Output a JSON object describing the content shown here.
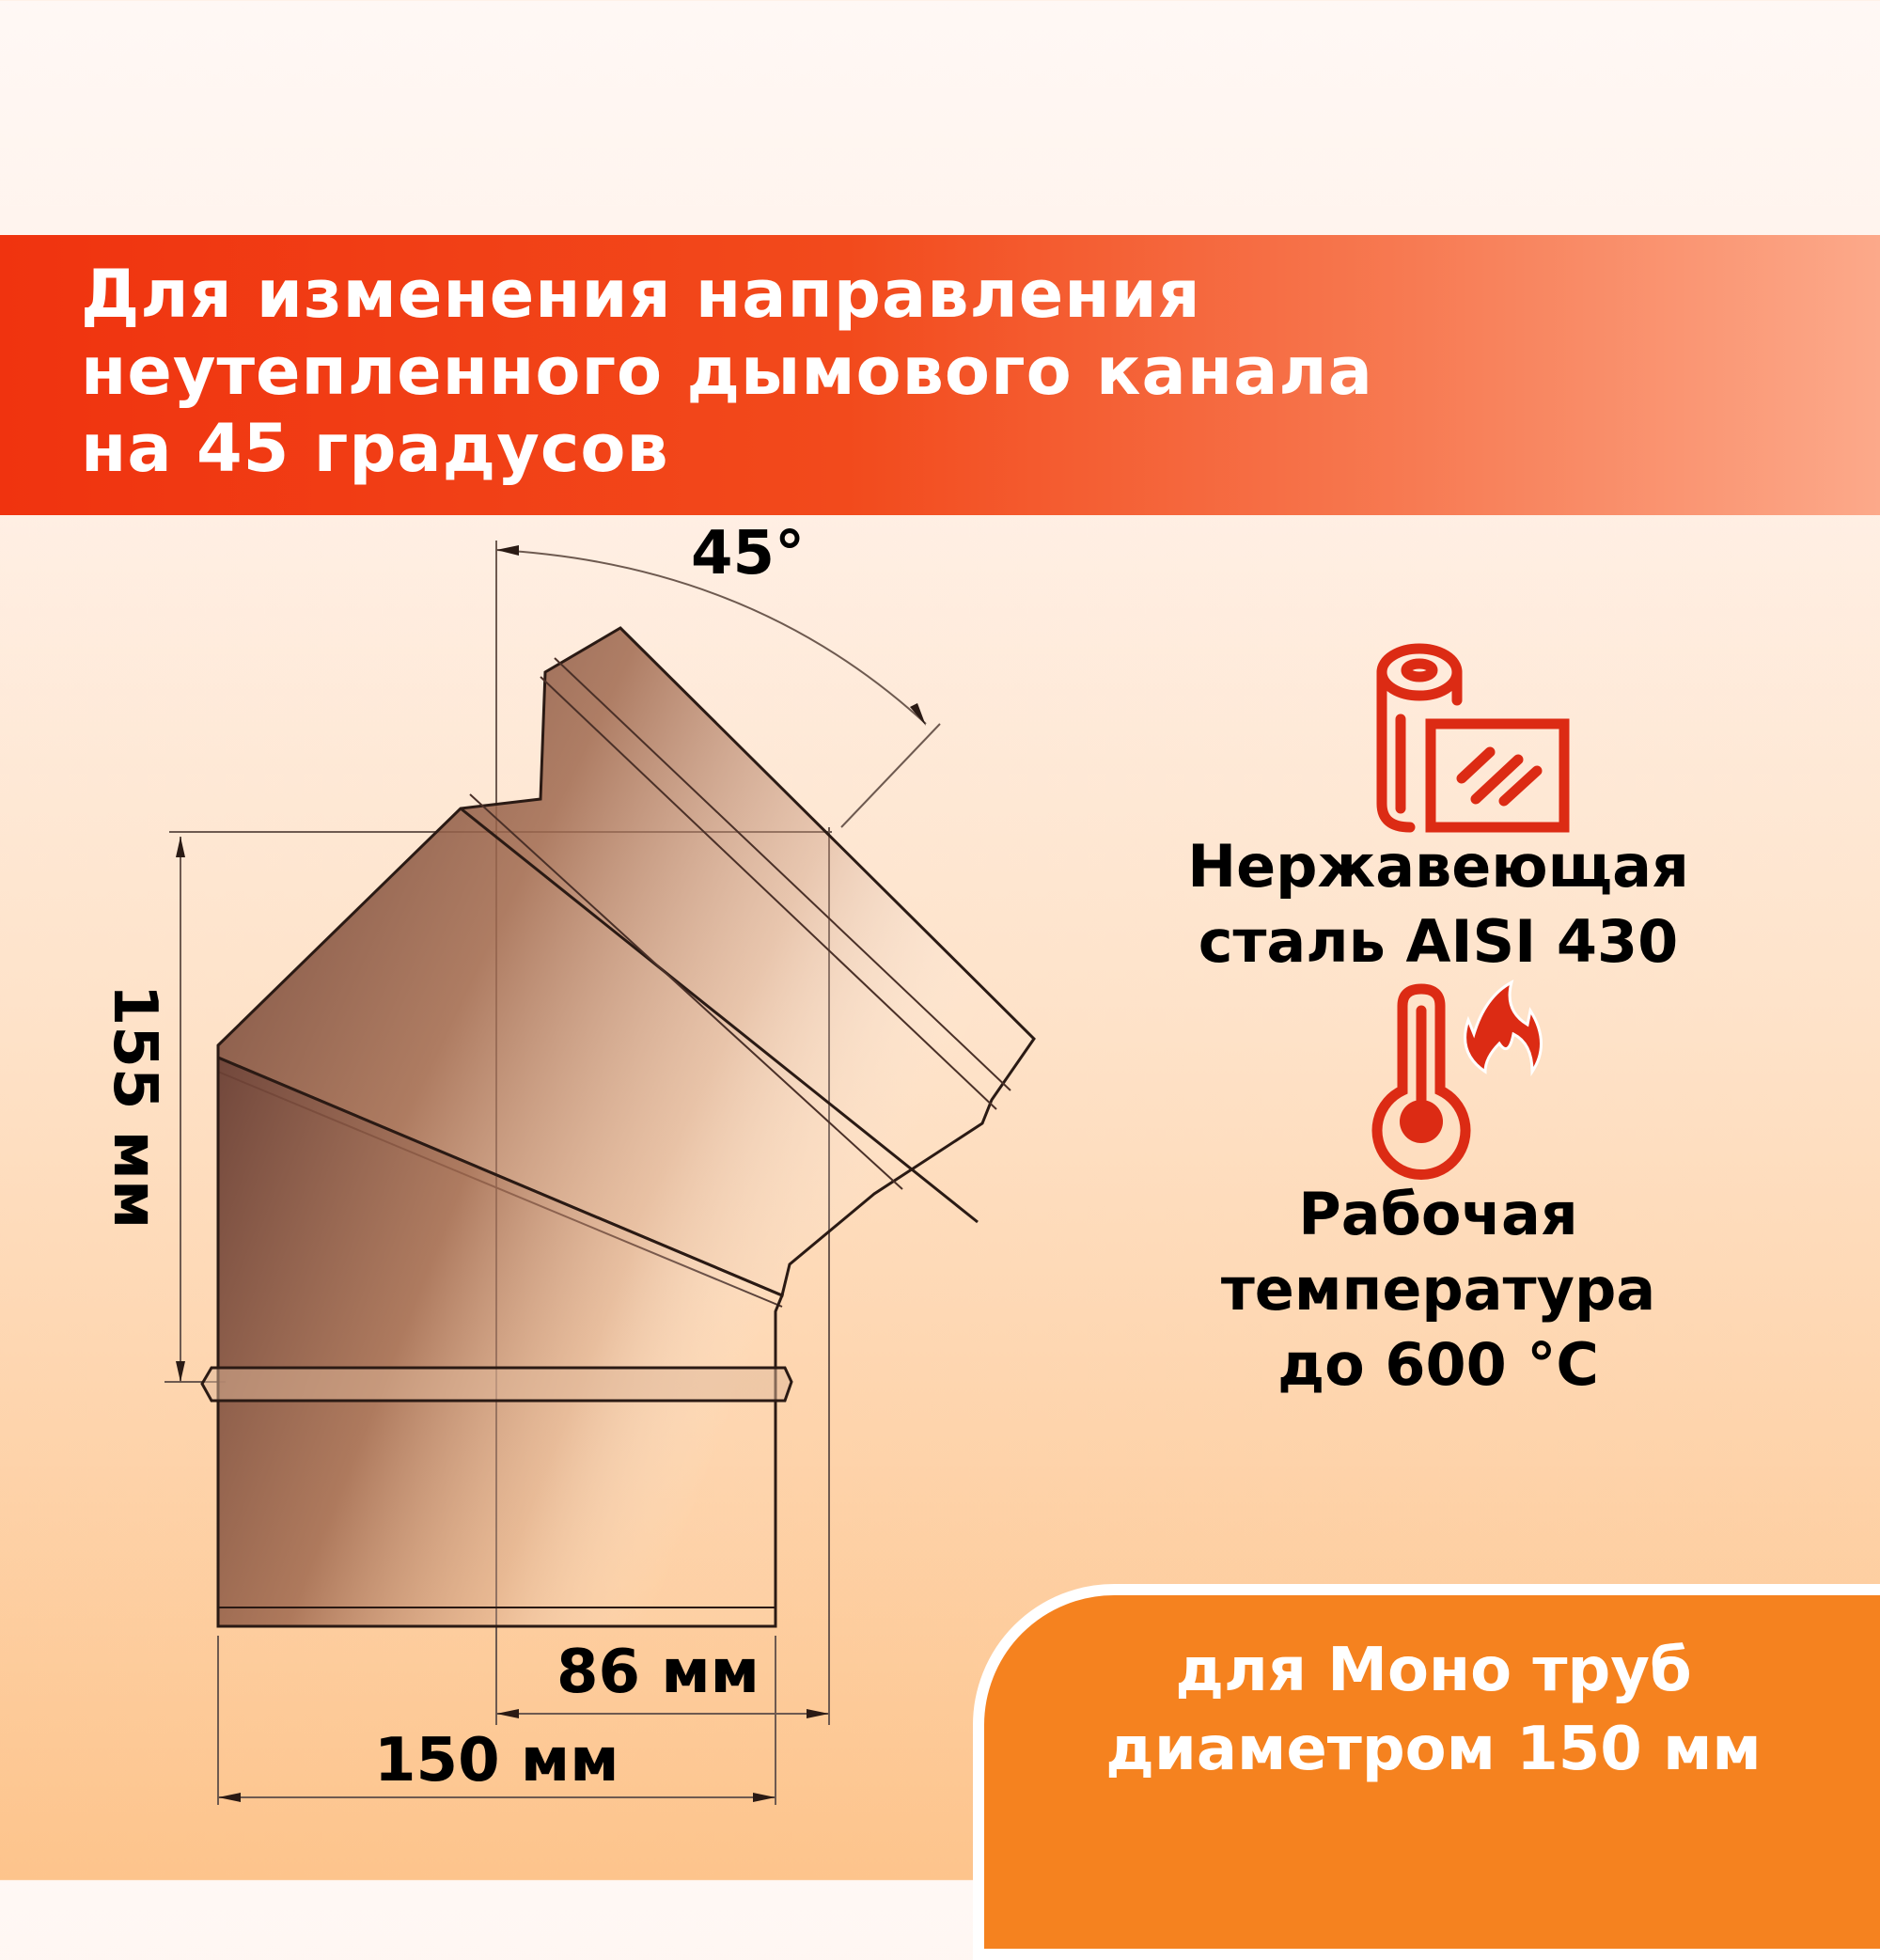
{
  "header": {
    "lines": [
      "Для изменения направления",
      "неутепленного дымового канала",
      "на 45 градусов"
    ]
  },
  "diagram": {
    "angle_label": "45°",
    "height_label": "155 мм",
    "offset_label": "86 мм",
    "width_label": "150 мм"
  },
  "features": [
    {
      "icon": "steel-roll-sheet-icon",
      "lines": [
        "Нержавеющая",
        "сталь AISI 430"
      ]
    },
    {
      "icon": "thermometer-flame-icon",
      "lines": [
        "Рабочая",
        "температура",
        "до 600 °C"
      ]
    }
  ],
  "badge": {
    "lines": [
      "для Моно труб",
      "диаметром 150 мм"
    ]
  },
  "colors": {
    "header_start": "#f0330f",
    "header_end": "#fca98a",
    "icon_red": "#dc2b14",
    "badge": "#f5821f",
    "text": "#000000"
  }
}
